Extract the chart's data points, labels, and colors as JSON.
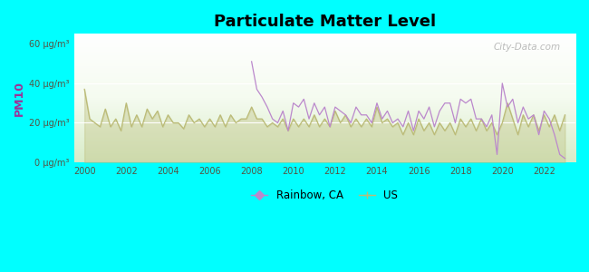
{
  "title": "Particulate Matter Level",
  "ylabel": "PM10",
  "background_color": "#00ffff",
  "rainbow_color": "#bb88cc",
  "us_color": "#bbbb77",
  "ylim": [
    0,
    65
  ],
  "yticks": [
    0,
    20,
    40,
    60
  ],
  "ytick_labels": [
    "0 μg/m³",
    "20 μg/m³",
    "40 μg/m³",
    "60 μg/m³"
  ],
  "xticks": [
    2000,
    2002,
    2004,
    2006,
    2008,
    2010,
    2012,
    2014,
    2016,
    2018,
    2020,
    2022
  ],
  "watermark": "City-Data.com",
  "xmin": 1999.5,
  "xmax": 2023.5,
  "us_data_x": [
    2000.0,
    2000.25,
    2000.5,
    2000.75,
    2001.0,
    2001.25,
    2001.5,
    2001.75,
    2002.0,
    2002.25,
    2002.5,
    2002.75,
    2003.0,
    2003.25,
    2003.5,
    2003.75,
    2004.0,
    2004.25,
    2004.5,
    2004.75,
    2005.0,
    2005.25,
    2005.5,
    2005.75,
    2006.0,
    2006.25,
    2006.5,
    2006.75,
    2007.0,
    2007.25,
    2007.5,
    2007.75,
    2008.0,
    2008.25,
    2008.5,
    2008.75,
    2009.0,
    2009.25,
    2009.5,
    2009.75,
    2010.0,
    2010.25,
    2010.5,
    2010.75,
    2011.0,
    2011.25,
    2011.5,
    2011.75,
    2012.0,
    2012.25,
    2012.5,
    2012.75,
    2013.0,
    2013.25,
    2013.5,
    2013.75,
    2014.0,
    2014.25,
    2014.5,
    2014.75,
    2015.0,
    2015.25,
    2015.5,
    2015.75,
    2016.0,
    2016.25,
    2016.5,
    2016.75,
    2017.0,
    2017.25,
    2017.5,
    2017.75,
    2018.0,
    2018.25,
    2018.5,
    2018.75,
    2019.0,
    2019.25,
    2019.5,
    2019.75,
    2020.0,
    2020.25,
    2020.5,
    2020.75,
    2021.0,
    2021.25,
    2021.5,
    2021.75,
    2022.0,
    2022.25,
    2022.5,
    2022.75,
    2023.0
  ],
  "us_data_y": [
    37,
    22,
    20,
    18,
    27,
    18,
    22,
    16,
    30,
    18,
    24,
    18,
    27,
    22,
    26,
    18,
    24,
    20,
    20,
    17,
    24,
    20,
    22,
    18,
    22,
    18,
    24,
    18,
    24,
    20,
    22,
    22,
    28,
    22,
    22,
    18,
    20,
    18,
    22,
    16,
    22,
    18,
    22,
    18,
    24,
    18,
    22,
    18,
    26,
    20,
    24,
    18,
    22,
    18,
    22,
    18,
    28,
    20,
    22,
    18,
    20,
    14,
    20,
    14,
    22,
    16,
    20,
    14,
    20,
    16,
    20,
    14,
    22,
    18,
    22,
    16,
    22,
    16,
    20,
    14,
    20,
    30,
    22,
    14,
    24,
    18,
    24,
    16,
    24,
    18,
    24,
    16,
    24
  ],
  "rainbow_data_x": [
    2008.0,
    2008.25,
    2008.5,
    2008.75,
    2009.0,
    2009.25,
    2009.5,
    2009.75,
    2010.0,
    2010.25,
    2010.5,
    2010.75,
    2011.0,
    2011.25,
    2011.5,
    2011.75,
    2012.0,
    2012.25,
    2012.5,
    2012.75,
    2013.0,
    2013.25,
    2013.5,
    2013.75,
    2014.0,
    2014.25,
    2014.5,
    2014.75,
    2015.0,
    2015.25,
    2015.5,
    2015.75,
    2016.0,
    2016.25,
    2016.5,
    2016.75,
    2017.0,
    2017.25,
    2017.5,
    2017.75,
    2018.0,
    2018.25,
    2018.5,
    2018.75,
    2019.0,
    2019.25,
    2019.5,
    2019.75,
    2020.0,
    2020.25,
    2020.5,
    2020.75,
    2021.0,
    2021.25,
    2021.5,
    2021.75,
    2022.0,
    2022.25,
    2022.5,
    2022.75,
    2023.0
  ],
  "rainbow_data_y": [
    51,
    37,
    33,
    28,
    22,
    20,
    26,
    16,
    30,
    28,
    32,
    22,
    30,
    24,
    28,
    18,
    28,
    26,
    24,
    20,
    28,
    24,
    24,
    20,
    30,
    22,
    26,
    20,
    22,
    18,
    26,
    16,
    26,
    22,
    28,
    18,
    26,
    30,
    30,
    20,
    32,
    30,
    32,
    22,
    22,
    18,
    24,
    4,
    40,
    28,
    32,
    20,
    28,
    22,
    24,
    14,
    26,
    22,
    14,
    4,
    2
  ]
}
